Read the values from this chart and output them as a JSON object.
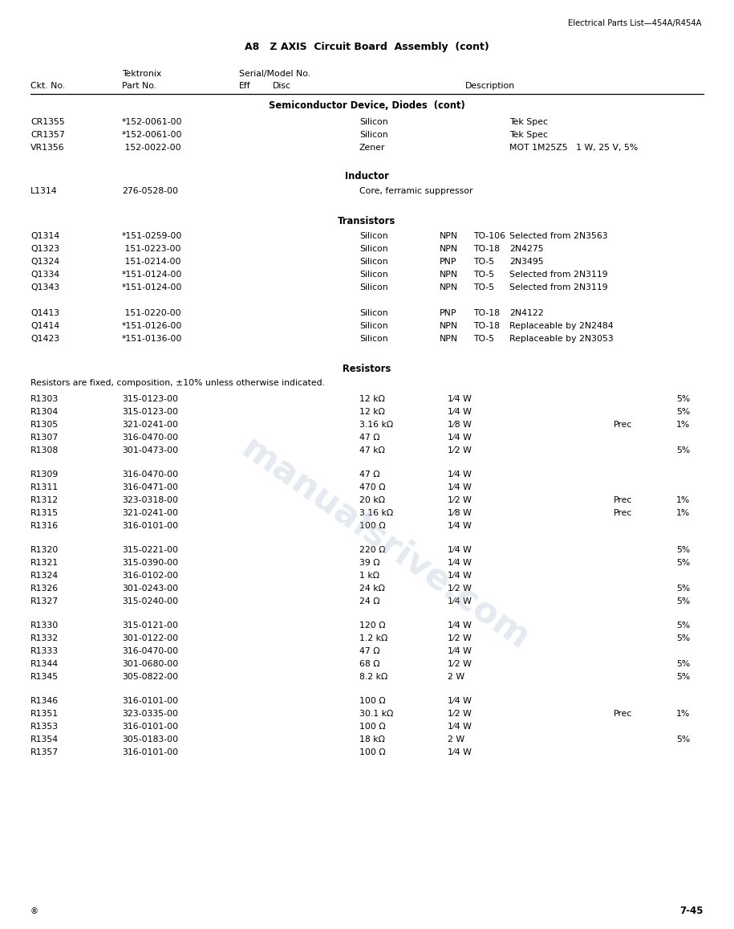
{
  "page_header_right": "Electrical Parts List—454A/R454A",
  "page_title": "A8   Z AXIS  Circuit Board  Assembly  (cont)",
  "section1_title": "Semiconductor Device, Diodes  (cont)",
  "section1_rows": [
    [
      "CR1355",
      "*152-0061-00",
      "Silicon",
      "Tek Spec"
    ],
    [
      "CR1357",
      "*152-0061-00",
      "Silicon",
      "Tek Spec"
    ],
    [
      "VR1356",
      " 152-0022-00",
      "Zener",
      "MOT 1M25Z5   1 W, 25 V, 5%"
    ]
  ],
  "section2_title": "Inductor",
  "section2_rows": [
    [
      "L1314",
      "276-0528-00",
      "Core, ferramic suppressor"
    ]
  ],
  "section3_title": "Transistors",
  "section3_rows": [
    [
      "Q1314",
      "*151-0259-00",
      "Silicon",
      "NPN",
      "TO-106",
      "Selected from 2N3563"
    ],
    [
      "Q1323",
      " 151-0223-00",
      "Silicon",
      "NPN",
      "TO-18",
      "2N4275"
    ],
    [
      "Q1324",
      " 151-0214-00",
      "Silicon",
      "PNP",
      "TO-5",
      "2N3495"
    ],
    [
      "Q1334",
      "*151-0124-00",
      "Silicon",
      "NPN",
      "TO-5",
      "Selected from 2N3119"
    ],
    [
      "Q1343",
      "*151-0124-00",
      "Silicon",
      "NPN",
      "TO-5",
      "Selected from 2N3119"
    ]
  ],
  "section3b_rows": [
    [
      "Q1413",
      " 151-0220-00",
      "Silicon",
      "PNP",
      "TO-18",
      "2N4122"
    ],
    [
      "Q1414",
      "*151-0126-00",
      "Silicon",
      "NPN",
      "TO-18",
      "Replaceable by 2N2484"
    ],
    [
      "Q1423",
      "*151-0136-00",
      "Silicon",
      "NPN",
      "TO-5",
      "Replaceable by 2N3053"
    ]
  ],
  "section4_title": "Resistors",
  "section4_note": "Resistors are fixed, composition, ±10% unless otherwise indicated.",
  "section4a_rows": [
    [
      "R1303",
      "315-0123-00",
      "12 kΩ",
      "1⁄4 W",
      "",
      "5%"
    ],
    [
      "R1304",
      "315-0123-00",
      "12 kΩ",
      "1⁄4 W",
      "",
      "5%"
    ],
    [
      "R1305",
      "321-0241-00",
      "3.16 kΩ",
      "1⁄8 W",
      "Prec",
      "1%"
    ],
    [
      "R1307",
      "316-0470-00",
      "47 Ω",
      "1⁄4 W",
      "",
      ""
    ],
    [
      "R1308",
      "301-0473-00",
      "47 kΩ",
      "1⁄2 W",
      "",
      "5%"
    ]
  ],
  "section4b_rows": [
    [
      "R1309",
      "316-0470-00",
      "47 Ω",
      "1⁄4 W",
      "",
      ""
    ],
    [
      "R1311",
      "316-0471-00",
      "470 Ω",
      "1⁄4 W",
      "",
      ""
    ],
    [
      "R1312",
      "323-0318-00",
      "20 kΩ",
      "1⁄2 W",
      "Prec",
      "1%"
    ],
    [
      "R1315",
      "321-0241-00",
      "3.16 kΩ",
      "1⁄8 W",
      "Prec",
      "1%"
    ],
    [
      "R1316",
      "316-0101-00",
      "100 Ω",
      "1⁄4 W",
      "",
      ""
    ]
  ],
  "section4c_rows": [
    [
      "R1320",
      "315-0221-00",
      "220 Ω",
      "1⁄4 W",
      "",
      "5%"
    ],
    [
      "R1321",
      "315-0390-00",
      "39 Ω",
      "1⁄4 W",
      "",
      "5%"
    ],
    [
      "R1324",
      "316-0102-00",
      "1 kΩ",
      "1⁄4 W",
      "",
      ""
    ],
    [
      "R1326",
      "301-0243-00",
      "24 kΩ",
      "1⁄2 W",
      "",
      "5%"
    ],
    [
      "R1327",
      "315-0240-00",
      "24 Ω",
      "1⁄4 W",
      "",
      "5%"
    ]
  ],
  "section4d_rows": [
    [
      "R1330",
      "315-0121-00",
      "120 Ω",
      "1⁄4 W",
      "",
      "5%"
    ],
    [
      "R1332",
      "301-0122-00",
      "1.2 kΩ",
      "1⁄2 W",
      "",
      "5%"
    ],
    [
      "R1333",
      "316-0470-00",
      "47 Ω",
      "1⁄4 W",
      "",
      ""
    ],
    [
      "R1344",
      "301-0680-00",
      "68 Ω",
      "1⁄2 W",
      "",
      "5%"
    ],
    [
      "R1345",
      "305-0822-00",
      "8.2 kΩ",
      "2 W",
      "",
      "5%"
    ]
  ],
  "section4e_rows": [
    [
      "R1346",
      "316-0101-00",
      "100 Ω",
      "1⁄4 W",
      "",
      ""
    ],
    [
      "R1351",
      "323-0335-00",
      "30.1 kΩ",
      "1⁄2 W",
      "Prec",
      "1%"
    ],
    [
      "R1353",
      "316-0101-00",
      "100 Ω",
      "1⁄4 W",
      "",
      ""
    ],
    [
      "R1354",
      "305-0183-00",
      "18 kΩ",
      "2 W",
      "",
      "5%"
    ],
    [
      "R1357",
      "316-0101-00",
      "100 Ω",
      "1⁄4 W",
      "",
      ""
    ]
  ],
  "page_footer_left": "®",
  "page_footer_right": "7-45",
  "watermark_text": "manualsrive.com",
  "bg_color": "#ffffff",
  "text_color": "#000000",
  "watermark_color": "#aabbd0"
}
